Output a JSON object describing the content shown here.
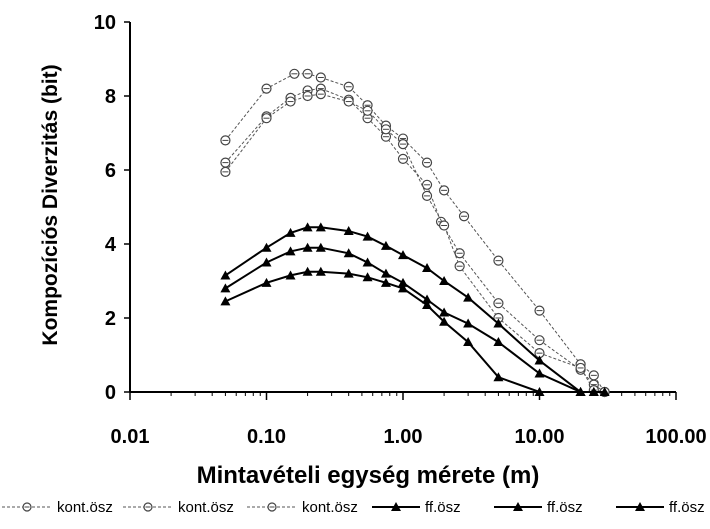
{
  "chart_data": {
    "type": "line",
    "xlabel": "Mintavételi egység mérete (m)",
    "ylabel": "Kompozíciós Diverzitás (bit)",
    "xscale": "log",
    "xlim": [
      0.01,
      100
    ],
    "ylim": [
      0,
      10
    ],
    "x_ticks": [
      "0.01",
      "0.10",
      "1.00",
      "10.00",
      "100.00"
    ],
    "y_ticks": [
      "0",
      "2",
      "4",
      "6",
      "8",
      "10"
    ],
    "grid": false,
    "legend_position": "bottom",
    "series": [
      {
        "name": "kont.ösz",
        "marker": "open-circle",
        "line": "dashed",
        "color": "#555555",
        "points": [
          [
            0.05,
            6.8
          ],
          [
            0.1,
            8.2
          ],
          [
            0.16,
            8.6
          ],
          [
            0.2,
            8.6
          ],
          [
            0.25,
            8.5
          ],
          [
            0.4,
            8.25
          ],
          [
            0.55,
            7.75
          ],
          [
            0.75,
            7.2
          ],
          [
            1.0,
            6.85
          ],
          [
            1.5,
            6.2
          ],
          [
            2.0,
            5.45
          ],
          [
            2.8,
            4.75
          ],
          [
            5.0,
            3.55
          ],
          [
            10.0,
            2.2
          ],
          [
            20.0,
            0.75
          ],
          [
            25.0,
            0.45
          ],
          [
            30.0,
            0.0
          ]
        ]
      },
      {
        "name": "kont.ösz",
        "marker": "open-circle",
        "line": "dashed",
        "color": "#555555",
        "points": [
          [
            0.05,
            6.2
          ],
          [
            0.1,
            7.45
          ],
          [
            0.15,
            7.95
          ],
          [
            0.2,
            8.15
          ],
          [
            0.25,
            8.2
          ],
          [
            0.4,
            7.9
          ],
          [
            0.55,
            7.4
          ],
          [
            0.75,
            6.9
          ],
          [
            1.0,
            6.3
          ],
          [
            1.5,
            5.6
          ],
          [
            1.9,
            4.6
          ],
          [
            2.6,
            3.75
          ],
          [
            5.0,
            2.4
          ],
          [
            10.0,
            1.4
          ],
          [
            20.0,
            0.6
          ],
          [
            25.0,
            0.2
          ],
          [
            30.0,
            0.0
          ]
        ]
      },
      {
        "name": "kont.ösz",
        "marker": "open-circle",
        "line": "dashed",
        "color": "#555555",
        "points": [
          [
            0.05,
            5.95
          ],
          [
            0.1,
            7.4
          ],
          [
            0.15,
            7.85
          ],
          [
            0.2,
            8.0
          ],
          [
            0.25,
            8.05
          ],
          [
            0.4,
            7.85
          ],
          [
            0.55,
            7.6
          ],
          [
            0.75,
            7.1
          ],
          [
            1.0,
            6.7
          ],
          [
            1.5,
            5.3
          ],
          [
            2.0,
            4.5
          ],
          [
            2.6,
            3.4
          ],
          [
            5.0,
            2.0
          ],
          [
            10.0,
            1.05
          ],
          [
            20.0,
            0.65
          ],
          [
            25.0,
            0.05
          ],
          [
            30.0,
            0.0
          ]
        ]
      },
      {
        "name": "ff.ösz",
        "marker": "filled-triangle",
        "line": "solid",
        "color": "#000000",
        "points": [
          [
            0.05,
            3.15
          ],
          [
            0.1,
            3.9
          ],
          [
            0.15,
            4.3
          ],
          [
            0.2,
            4.45
          ],
          [
            0.25,
            4.45
          ],
          [
            0.4,
            4.35
          ],
          [
            0.55,
            4.2
          ],
          [
            0.75,
            3.95
          ],
          [
            1.0,
            3.7
          ],
          [
            1.5,
            3.35
          ],
          [
            2.0,
            3.0
          ],
          [
            3.0,
            2.55
          ],
          [
            5.0,
            1.85
          ],
          [
            10.0,
            0.85
          ],
          [
            20.0,
            0.0
          ],
          [
            25.0,
            0.0
          ],
          [
            30.0,
            0.0
          ]
        ]
      },
      {
        "name": "ff.ösz",
        "marker": "filled-triangle",
        "line": "solid",
        "color": "#000000",
        "points": [
          [
            0.05,
            2.8
          ],
          [
            0.1,
            3.5
          ],
          [
            0.15,
            3.8
          ],
          [
            0.2,
            3.9
          ],
          [
            0.25,
            3.9
          ],
          [
            0.4,
            3.75
          ],
          [
            0.55,
            3.5
          ],
          [
            0.75,
            3.2
          ],
          [
            1.0,
            2.95
          ],
          [
            1.5,
            2.5
          ],
          [
            2.0,
            2.15
          ],
          [
            3.0,
            1.85
          ],
          [
            5.0,
            1.35
          ],
          [
            10.0,
            0.5
          ],
          [
            20.0,
            0.0
          ],
          [
            25.0,
            0.0
          ]
        ]
      },
      {
        "name": "ff.ösz",
        "marker": "filled-triangle",
        "line": "solid",
        "color": "#000000",
        "points": [
          [
            0.05,
            2.45
          ],
          [
            0.1,
            2.95
          ],
          [
            0.15,
            3.15
          ],
          [
            0.2,
            3.25
          ],
          [
            0.25,
            3.25
          ],
          [
            0.4,
            3.2
          ],
          [
            0.55,
            3.1
          ],
          [
            0.75,
            2.95
          ],
          [
            1.0,
            2.8
          ],
          [
            1.5,
            2.35
          ],
          [
            2.0,
            1.9
          ],
          [
            3.0,
            1.35
          ],
          [
            5.0,
            0.4
          ],
          [
            10.0,
            0.0
          ],
          [
            20.0,
            0.0
          ]
        ]
      }
    ]
  }
}
